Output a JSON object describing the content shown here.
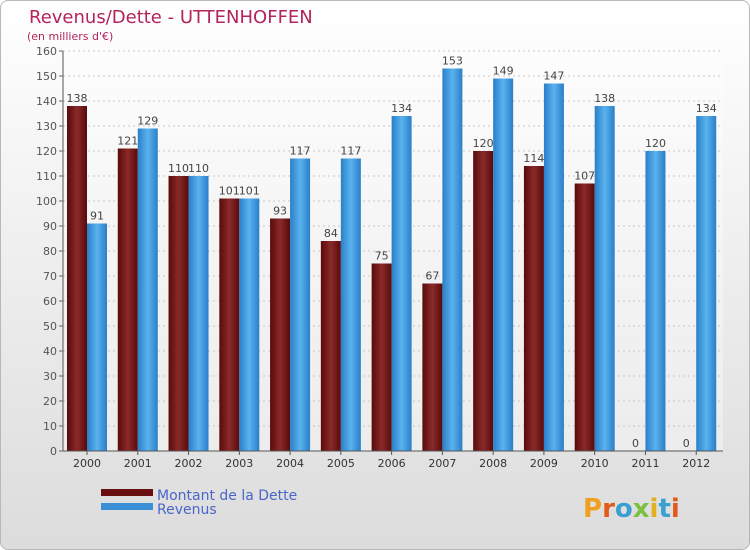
{
  "chart_data": {
    "type": "bar",
    "title": "Revenus/Dette - UTTENHOFFEN",
    "subtitle": "(en milliers d'€)",
    "categories": [
      "2000",
      "2001",
      "2002",
      "2003",
      "2004",
      "2005",
      "2006",
      "2007",
      "2008",
      "2009",
      "2010",
      "2011",
      "2012"
    ],
    "series": [
      {
        "name": "Montant de la Dette",
        "color": "#7a1515",
        "values": [
          138,
          121,
          110,
          101,
          93,
          84,
          75,
          67,
          120,
          114,
          107,
          0,
          0
        ]
      },
      {
        "name": "Revenus",
        "color": "#3a8fd8",
        "values": [
          91,
          129,
          110,
          101,
          117,
          117,
          134,
          153,
          149,
          147,
          138,
          120,
          134
        ]
      }
    ],
    "ylim": [
      0,
      160
    ],
    "yticks": [
      0,
      10,
      20,
      30,
      40,
      50,
      60,
      70,
      80,
      90,
      100,
      110,
      120,
      130,
      140,
      150,
      160
    ],
    "grid": true,
    "legend_position": "bottom-left"
  },
  "branding": {
    "logo_text": "Proxiti",
    "logo_colors": [
      "#f0a020",
      "#e05a1a",
      "#3aa0d0",
      "#7cc040",
      "#e0b020",
      "#3aa0d0",
      "#e05a1a"
    ]
  }
}
